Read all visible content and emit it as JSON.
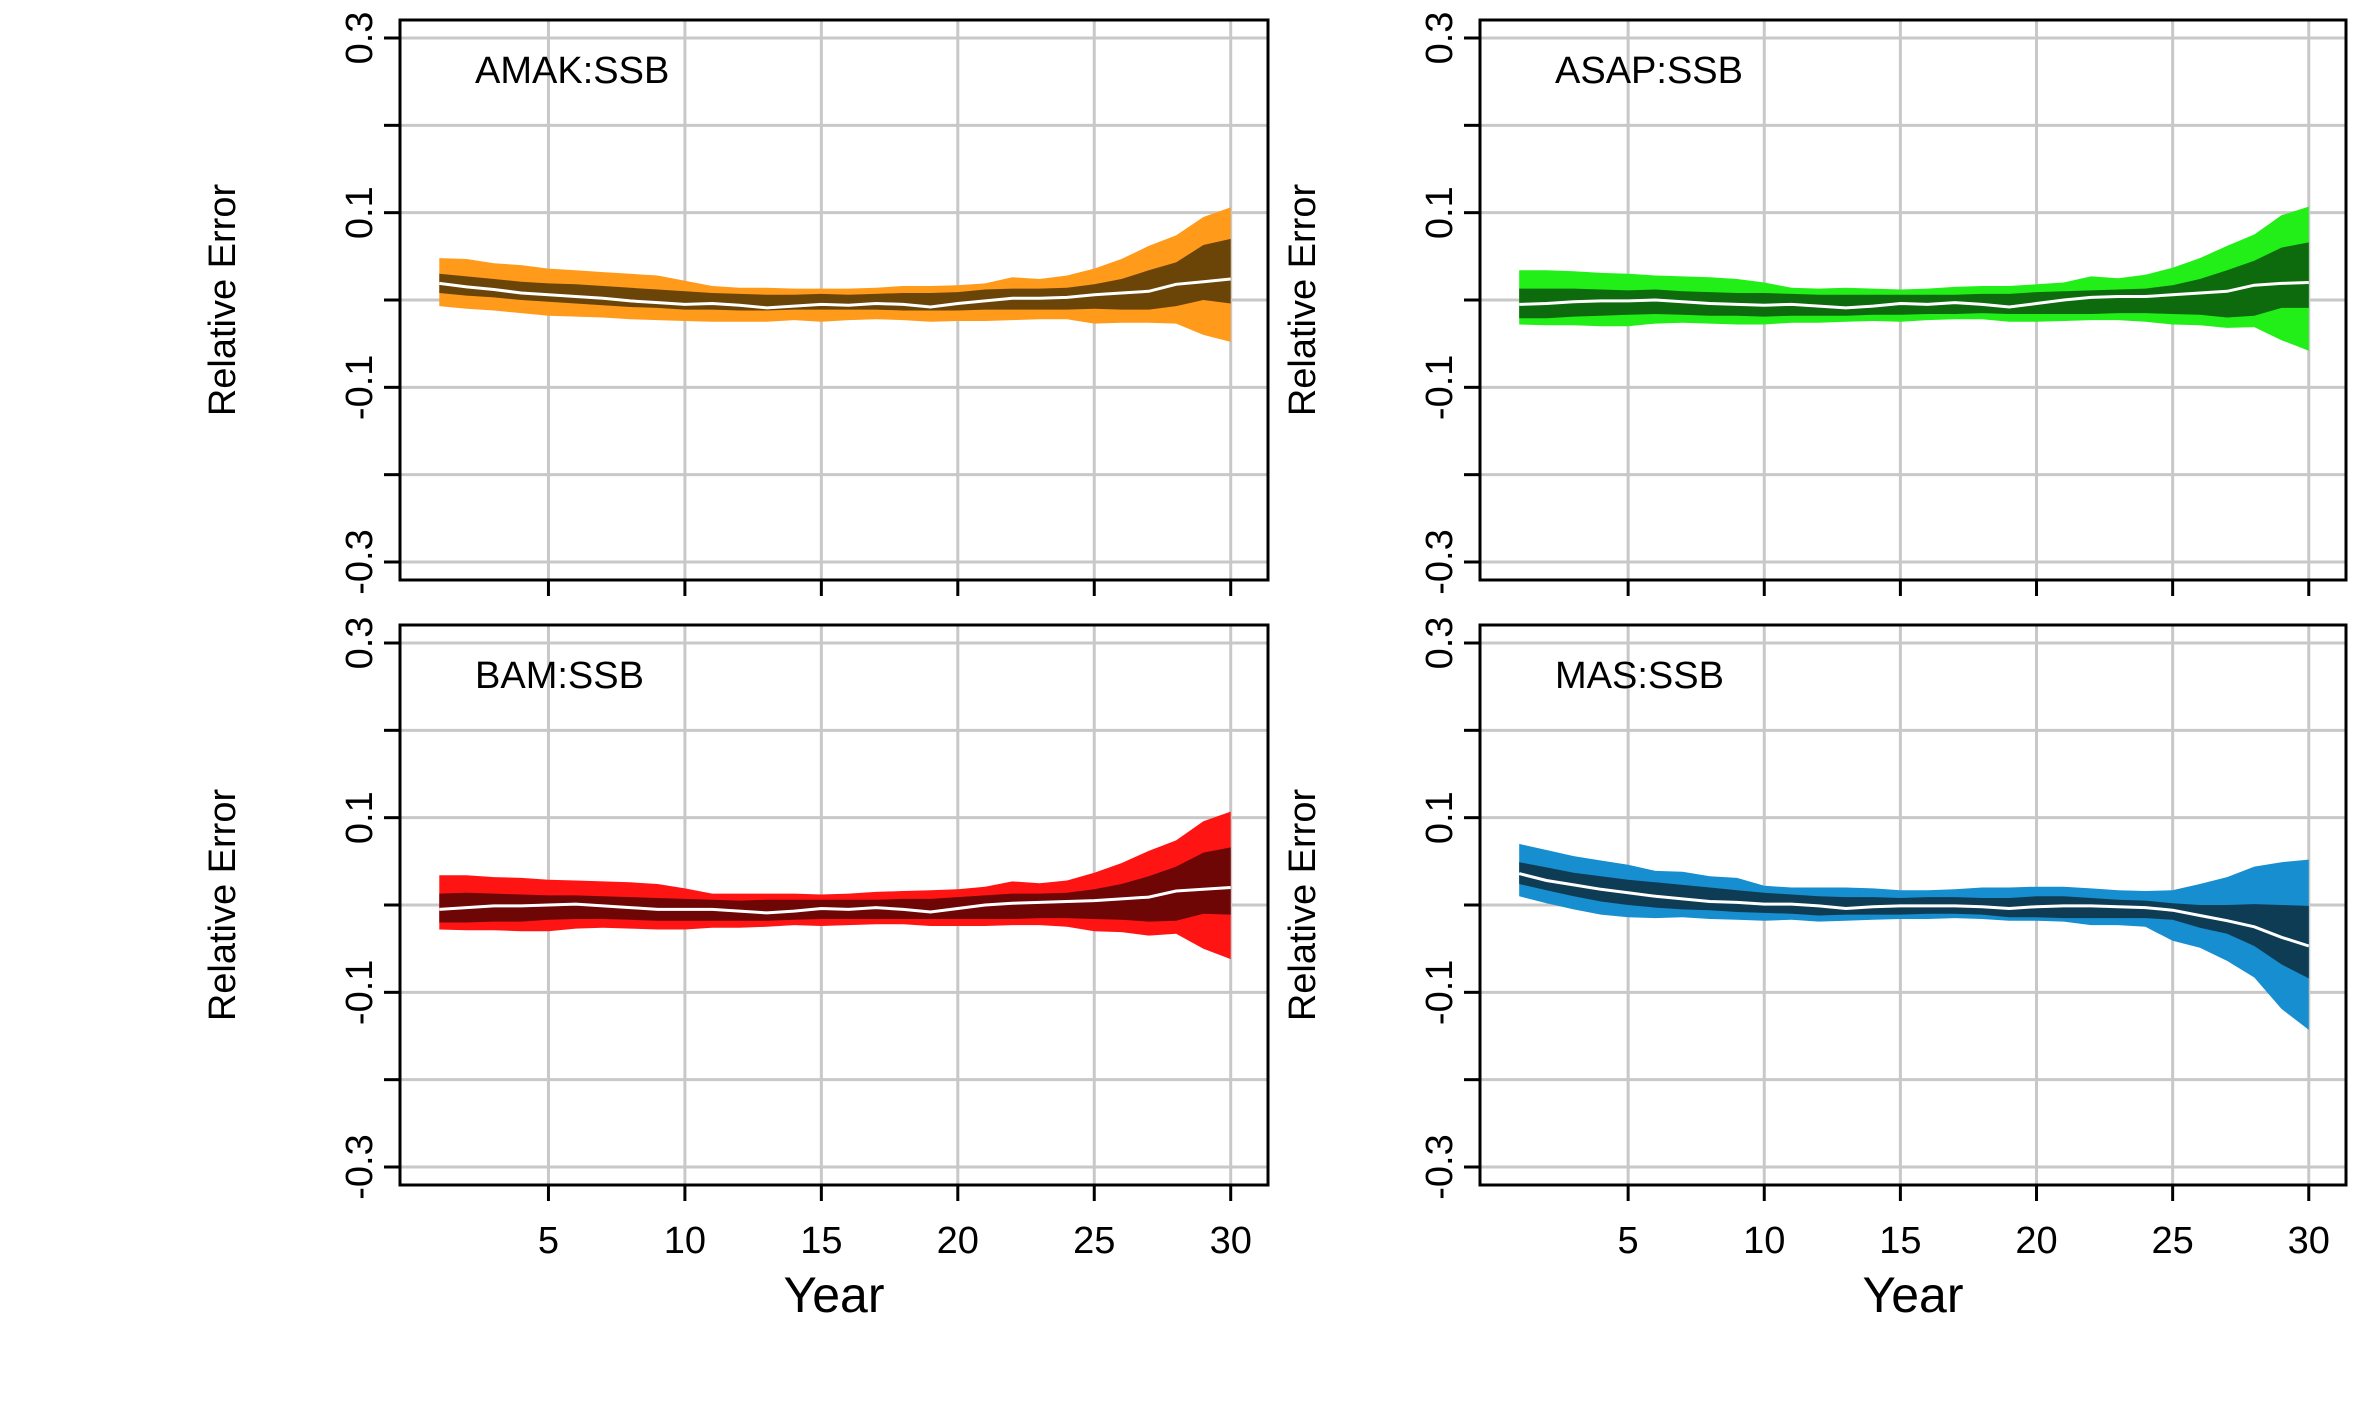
{
  "chart_data": [
    {
      "type": "area",
      "title": "AMAK:SSB",
      "xlabel": "",
      "ylabel": "Relative Error",
      "xlim": [
        0,
        31
      ],
      "ylim": [
        -0.3,
        0.3
      ],
      "x_ticks": [
        5,
        10,
        15,
        20,
        25,
        30
      ],
      "x_tick_labels": [
        "5",
        "10",
        "15",
        "20",
        "25",
        "30"
      ],
      "y_ticks": [
        -0.3,
        -0.2,
        -0.1,
        0,
        0.1,
        0.2,
        0.3
      ],
      "y_tick_labels": [
        "-0.3",
        "",
        "-0.1",
        "",
        "0.1",
        "",
        "0.3"
      ],
      "show_x_tick_labels": false,
      "grid": true,
      "colors": {
        "outer": "#ff9a1a",
        "inner": "#6b4408",
        "median": "#ffffff"
      },
      "x": [
        1,
        2,
        3,
        4,
        5,
        6,
        7,
        8,
        9,
        10,
        11,
        12,
        13,
        14,
        15,
        16,
        17,
        18,
        19,
        20,
        21,
        22,
        23,
        24,
        25,
        26,
        27,
        28,
        29,
        30
      ],
      "series": [
        {
          "role": "outer_upper",
          "values": [
            0.048,
            0.047,
            0.042,
            0.04,
            0.036,
            0.034,
            0.032,
            0.03,
            0.028,
            0.022,
            0.016,
            0.014,
            0.014,
            0.013,
            0.013,
            0.013,
            0.014,
            0.016,
            0.016,
            0.017,
            0.019,
            0.026,
            0.024,
            0.028,
            0.036,
            0.047,
            0.062,
            0.074,
            0.095,
            0.106
          ]
        },
        {
          "role": "inner_upper",
          "values": [
            0.03,
            0.027,
            0.024,
            0.021,
            0.019,
            0.018,
            0.016,
            0.014,
            0.012,
            0.01,
            0.008,
            0.007,
            0.006,
            0.006,
            0.007,
            0.006,
            0.007,
            0.008,
            0.008,
            0.009,
            0.012,
            0.013,
            0.013,
            0.014,
            0.018,
            0.024,
            0.034,
            0.043,
            0.063,
            0.07
          ]
        },
        {
          "role": "median",
          "values": [
            0.019,
            0.015,
            0.012,
            0.008,
            0.006,
            0.004,
            0.002,
            -0.001,
            -0.003,
            -0.005,
            -0.004,
            -0.006,
            -0.009,
            -0.007,
            -0.005,
            -0.006,
            -0.004,
            -0.005,
            -0.008,
            -0.004,
            -0.001,
            0.002,
            0.002,
            0.003,
            0.006,
            0.008,
            0.01,
            0.018,
            0.021,
            0.024
          ]
        },
        {
          "role": "inner_lower",
          "values": [
            0.008,
            0.005,
            0.003,
            0.0,
            -0.002,
            -0.004,
            -0.006,
            -0.008,
            -0.009,
            -0.011,
            -0.011,
            -0.012,
            -0.012,
            -0.011,
            -0.011,
            -0.011,
            -0.011,
            -0.012,
            -0.012,
            -0.012,
            -0.011,
            -0.011,
            -0.011,
            -0.011,
            -0.01,
            -0.011,
            -0.011,
            -0.007,
            0.0,
            -0.004
          ]
        },
        {
          "role": "outer_lower",
          "values": [
            -0.007,
            -0.01,
            -0.012,
            -0.015,
            -0.018,
            -0.019,
            -0.02,
            -0.022,
            -0.023,
            -0.024,
            -0.025,
            -0.025,
            -0.025,
            -0.023,
            -0.025,
            -0.023,
            -0.022,
            -0.023,
            -0.025,
            -0.024,
            -0.024,
            -0.023,
            -0.022,
            -0.022,
            -0.027,
            -0.026,
            -0.026,
            -0.027,
            -0.04,
            -0.048
          ]
        }
      ]
    },
    {
      "type": "area",
      "title": "ASAP:SSB",
      "xlabel": "",
      "ylabel": "Relative Error",
      "xlim": [
        0,
        31
      ],
      "ylim": [
        -0.3,
        0.3
      ],
      "x_ticks": [
        5,
        10,
        15,
        20,
        25,
        30
      ],
      "x_tick_labels": [
        "5",
        "10",
        "15",
        "20",
        "25",
        "30"
      ],
      "y_ticks": [
        -0.3,
        -0.2,
        -0.1,
        0,
        0.1,
        0.2,
        0.3
      ],
      "y_tick_labels": [
        "-0.3",
        "",
        "-0.1",
        "",
        "0.1",
        "",
        "0.3"
      ],
      "show_x_tick_labels": false,
      "grid": true,
      "colors": {
        "outer": "#22ee18",
        "inner": "#0d6a0d",
        "median": "#ffffff"
      },
      "x": [
        1,
        2,
        3,
        4,
        5,
        6,
        7,
        8,
        9,
        10,
        11,
        12,
        13,
        14,
        15,
        16,
        17,
        18,
        19,
        20,
        21,
        22,
        23,
        24,
        25,
        26,
        27,
        28,
        29,
        30
      ],
      "series": [
        {
          "role": "outer_upper",
          "values": [
            0.034,
            0.034,
            0.033,
            0.031,
            0.03,
            0.028,
            0.027,
            0.026,
            0.024,
            0.02,
            0.014,
            0.013,
            0.014,
            0.013,
            0.012,
            0.013,
            0.015,
            0.016,
            0.016,
            0.018,
            0.02,
            0.027,
            0.025,
            0.029,
            0.037,
            0.048,
            0.062,
            0.075,
            0.097,
            0.107
          ]
        },
        {
          "role": "inner_upper",
          "values": [
            0.013,
            0.013,
            0.013,
            0.012,
            0.011,
            0.012,
            0.01,
            0.009,
            0.008,
            0.008,
            0.007,
            0.006,
            0.006,
            0.006,
            0.006,
            0.006,
            0.006,
            0.007,
            0.007,
            0.009,
            0.01,
            0.011,
            0.012,
            0.013,
            0.017,
            0.024,
            0.034,
            0.045,
            0.06,
            0.066
          ]
        },
        {
          "role": "median",
          "values": [
            -0.005,
            -0.004,
            -0.002,
            -0.001,
            -0.001,
            0.0,
            -0.002,
            -0.004,
            -0.005,
            -0.006,
            -0.005,
            -0.007,
            -0.009,
            -0.007,
            -0.004,
            -0.005,
            -0.003,
            -0.005,
            -0.008,
            -0.004,
            0.0,
            0.003,
            0.004,
            0.004,
            0.006,
            0.008,
            0.01,
            0.017,
            0.019,
            0.02
          ]
        },
        {
          "role": "inner_lower",
          "values": [
            -0.021,
            -0.021,
            -0.019,
            -0.018,
            -0.017,
            -0.016,
            -0.017,
            -0.018,
            -0.018,
            -0.019,
            -0.018,
            -0.018,
            -0.018,
            -0.017,
            -0.017,
            -0.016,
            -0.016,
            -0.015,
            -0.016,
            -0.016,
            -0.016,
            -0.016,
            -0.015,
            -0.015,
            -0.016,
            -0.017,
            -0.02,
            -0.018,
            -0.009,
            -0.009
          ]
        },
        {
          "role": "outer_lower",
          "values": [
            -0.028,
            -0.029,
            -0.029,
            -0.03,
            -0.03,
            -0.027,
            -0.026,
            -0.027,
            -0.028,
            -0.028,
            -0.026,
            -0.026,
            -0.025,
            -0.024,
            -0.025,
            -0.023,
            -0.022,
            -0.022,
            -0.025,
            -0.025,
            -0.024,
            -0.023,
            -0.023,
            -0.025,
            -0.028,
            -0.029,
            -0.032,
            -0.031,
            -0.046,
            -0.058
          ]
        }
      ]
    },
    {
      "type": "area",
      "title": "BAM:SSB",
      "xlabel": "Year",
      "ylabel": "Relative Error",
      "xlim": [
        0,
        31
      ],
      "ylim": [
        -0.3,
        0.3
      ],
      "x_ticks": [
        5,
        10,
        15,
        20,
        25,
        30
      ],
      "x_tick_labels": [
        "5",
        "10",
        "15",
        "20",
        "25",
        "30"
      ],
      "y_ticks": [
        -0.3,
        -0.2,
        -0.1,
        0,
        0.1,
        0.2,
        0.3
      ],
      "y_tick_labels": [
        "-0.3",
        "",
        "-0.1",
        "",
        "0.1",
        "",
        "0.3"
      ],
      "show_x_tick_labels": true,
      "grid": true,
      "colors": {
        "outer": "#ff1414",
        "inner": "#6e0606",
        "median": "#ffffff"
      },
      "x": [
        1,
        2,
        3,
        4,
        5,
        6,
        7,
        8,
        9,
        10,
        11,
        12,
        13,
        14,
        15,
        16,
        17,
        18,
        19,
        20,
        21,
        22,
        23,
        24,
        25,
        26,
        27,
        28,
        29,
        30
      ],
      "series": [
        {
          "role": "outer_upper",
          "values": [
            0.034,
            0.034,
            0.032,
            0.031,
            0.029,
            0.028,
            0.027,
            0.026,
            0.024,
            0.019,
            0.013,
            0.013,
            0.013,
            0.013,
            0.012,
            0.013,
            0.015,
            0.016,
            0.017,
            0.018,
            0.021,
            0.027,
            0.025,
            0.028,
            0.037,
            0.048,
            0.062,
            0.074,
            0.096,
            0.107
          ]
        },
        {
          "role": "inner_upper",
          "values": [
            0.013,
            0.014,
            0.013,
            0.012,
            0.011,
            0.011,
            0.01,
            0.009,
            0.008,
            0.007,
            0.006,
            0.005,
            0.006,
            0.006,
            0.006,
            0.006,
            0.006,
            0.007,
            0.007,
            0.009,
            0.011,
            0.013,
            0.013,
            0.014,
            0.018,
            0.024,
            0.033,
            0.044,
            0.06,
            0.066
          ]
        },
        {
          "role": "median",
          "values": [
            -0.005,
            -0.003,
            -0.001,
            -0.001,
            0.0,
            0.001,
            -0.001,
            -0.003,
            -0.005,
            -0.005,
            -0.005,
            -0.007,
            -0.009,
            -0.007,
            -0.004,
            -0.005,
            -0.003,
            -0.005,
            -0.008,
            -0.004,
            0.0,
            0.002,
            0.003,
            0.004,
            0.005,
            0.007,
            0.009,
            0.016,
            0.018,
            0.02
          ]
        },
        {
          "role": "inner_lower",
          "values": [
            -0.02,
            -0.02,
            -0.019,
            -0.019,
            -0.017,
            -0.016,
            -0.016,
            -0.017,
            -0.018,
            -0.018,
            -0.018,
            -0.018,
            -0.018,
            -0.017,
            -0.016,
            -0.016,
            -0.016,
            -0.016,
            -0.016,
            -0.016,
            -0.016,
            -0.016,
            -0.015,
            -0.015,
            -0.016,
            -0.017,
            -0.019,
            -0.018,
            -0.01,
            -0.011
          ]
        },
        {
          "role": "outer_lower",
          "values": [
            -0.028,
            -0.029,
            -0.029,
            -0.03,
            -0.03,
            -0.027,
            -0.026,
            -0.027,
            -0.028,
            -0.028,
            -0.026,
            -0.026,
            -0.025,
            -0.023,
            -0.024,
            -0.023,
            -0.022,
            -0.022,
            -0.024,
            -0.024,
            -0.024,
            -0.023,
            -0.023,
            -0.025,
            -0.03,
            -0.031,
            -0.035,
            -0.033,
            -0.05,
            -0.062
          ]
        }
      ]
    },
    {
      "type": "area",
      "title": "MAS:SSB",
      "xlabel": "Year",
      "ylabel": "Relative Error",
      "xlim": [
        0,
        31
      ],
      "ylim": [
        -0.3,
        0.3
      ],
      "x_ticks": [
        5,
        10,
        15,
        20,
        25,
        30
      ],
      "x_tick_labels": [
        "5",
        "10",
        "15",
        "20",
        "25",
        "30"
      ],
      "y_ticks": [
        -0.3,
        -0.2,
        -0.1,
        0,
        0.1,
        0.2,
        0.3
      ],
      "y_tick_labels": [
        "-0.3",
        "",
        "-0.1",
        "",
        "0.1",
        "",
        "0.3"
      ],
      "show_x_tick_labels": true,
      "grid": true,
      "colors": {
        "outer": "#178ecf",
        "inner": "#0e3c55",
        "median": "#ffffff"
      },
      "x": [
        1,
        2,
        3,
        4,
        5,
        6,
        7,
        8,
        9,
        10,
        11,
        12,
        13,
        14,
        15,
        16,
        17,
        18,
        19,
        20,
        21,
        22,
        23,
        24,
        25,
        26,
        27,
        28,
        29,
        30
      ],
      "series": [
        {
          "role": "outer_upper",
          "values": [
            0.07,
            0.063,
            0.056,
            0.051,
            0.046,
            0.039,
            0.038,
            0.033,
            0.031,
            0.022,
            0.02,
            0.02,
            0.02,
            0.019,
            0.017,
            0.017,
            0.018,
            0.02,
            0.02,
            0.021,
            0.021,
            0.019,
            0.017,
            0.016,
            0.017,
            0.024,
            0.032,
            0.044,
            0.049,
            0.052
          ]
        },
        {
          "role": "inner_upper",
          "values": [
            0.049,
            0.043,
            0.037,
            0.033,
            0.029,
            0.026,
            0.023,
            0.02,
            0.017,
            0.014,
            0.012,
            0.01,
            0.009,
            0.009,
            0.008,
            0.009,
            0.009,
            0.008,
            0.008,
            0.01,
            0.01,
            0.008,
            0.006,
            0.005,
            0.002,
            0.0,
            0.0,
            0.001,
            0.0,
            -0.001
          ]
        },
        {
          "role": "median",
          "values": [
            0.036,
            0.028,
            0.023,
            0.018,
            0.014,
            0.01,
            0.007,
            0.004,
            0.003,
            0.001,
            0.001,
            -0.001,
            -0.004,
            -0.002,
            -0.001,
            -0.001,
            -0.001,
            -0.002,
            -0.004,
            -0.002,
            -0.001,
            -0.001,
            -0.002,
            -0.003,
            -0.006,
            -0.012,
            -0.018,
            -0.025,
            -0.037,
            -0.047
          ]
        },
        {
          "role": "inner_lower",
          "values": [
            0.024,
            0.017,
            0.01,
            0.004,
            0.0,
            -0.003,
            -0.005,
            -0.006,
            -0.008,
            -0.009,
            -0.01,
            -0.012,
            -0.011,
            -0.011,
            -0.011,
            -0.01,
            -0.01,
            -0.011,
            -0.014,
            -0.014,
            -0.015,
            -0.015,
            -0.015,
            -0.015,
            -0.017,
            -0.026,
            -0.033,
            -0.047,
            -0.068,
            -0.084
          ]
        },
        {
          "role": "outer_lower",
          "values": [
            0.01,
            0.002,
            -0.005,
            -0.011,
            -0.014,
            -0.015,
            -0.014,
            -0.016,
            -0.017,
            -0.018,
            -0.017,
            -0.019,
            -0.018,
            -0.017,
            -0.016,
            -0.016,
            -0.015,
            -0.016,
            -0.018,
            -0.018,
            -0.019,
            -0.023,
            -0.023,
            -0.025,
            -0.041,
            -0.049,
            -0.064,
            -0.083,
            -0.119,
            -0.143
          ]
        }
      ]
    }
  ]
}
